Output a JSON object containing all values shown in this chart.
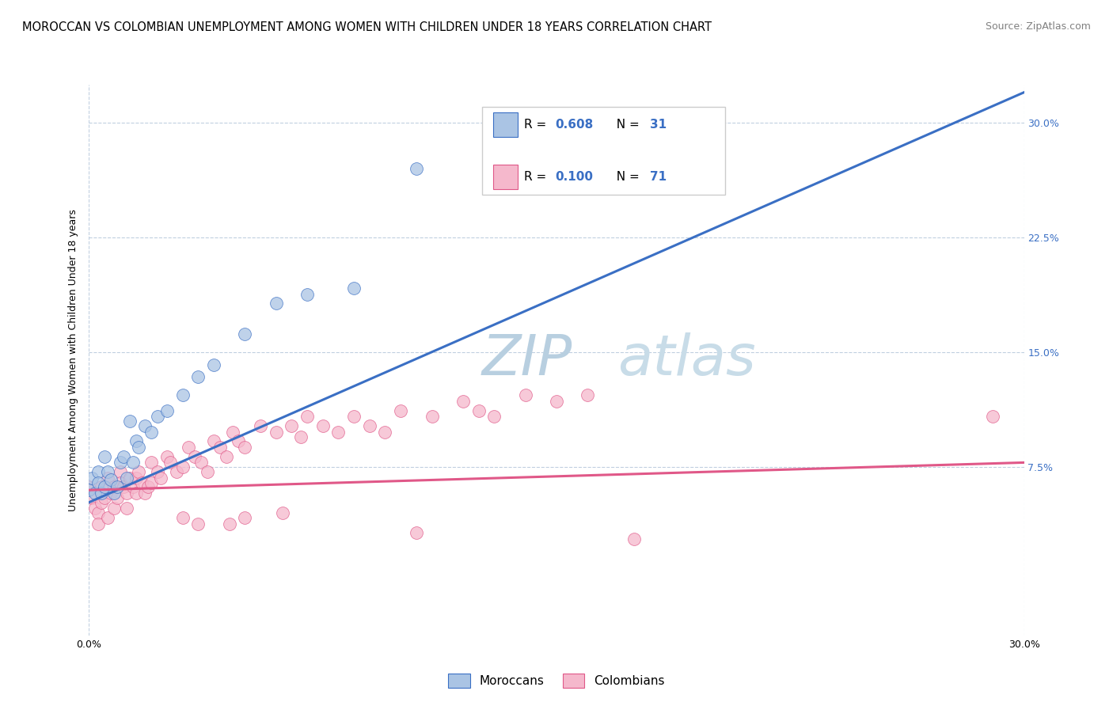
{
  "title": "MOROCCAN VS COLOMBIAN UNEMPLOYMENT AMONG WOMEN WITH CHILDREN UNDER 18 YEARS CORRELATION CHART",
  "source": "Source: ZipAtlas.com",
  "ylabel": "Unemployment Among Women with Children Under 18 years",
  "ytick_labels": [
    "7.5%",
    "15.0%",
    "22.5%",
    "30.0%"
  ],
  "ytick_values": [
    0.075,
    0.15,
    0.225,
    0.3
  ],
  "xlim": [
    0.0,
    0.3
  ],
  "ylim": [
    -0.035,
    0.325
  ],
  "moroccan_R": 0.608,
  "moroccan_N": 31,
  "colombian_R": 0.1,
  "colombian_N": 71,
  "moroccan_color": "#aac4e4",
  "colombian_color": "#f5b8cc",
  "moroccan_line_color": "#3a6fc4",
  "colombian_line_color": "#e05888",
  "background_color": "#ffffff",
  "grid_color": "#c0cfe0",
  "watermark_color": "#dae8f2",
  "legend_moroccan_label": "Moroccans",
  "legend_colombian_label": "Colombians",
  "title_fontsize": 10.5,
  "source_fontsize": 9,
  "axis_label_fontsize": 9,
  "tick_fontsize": 9,
  "legend_fontsize": 11,
  "watermark_fontsize": 52,
  "moroccan_scatter": [
    [
      0.0,
      0.06
    ],
    [
      0.001,
      0.068
    ],
    [
      0.002,
      0.058
    ],
    [
      0.003,
      0.072
    ],
    [
      0.003,
      0.065
    ],
    [
      0.004,
      0.058
    ],
    [
      0.005,
      0.082
    ],
    [
      0.005,
      0.062
    ],
    [
      0.006,
      0.072
    ],
    [
      0.007,
      0.067
    ],
    [
      0.008,
      0.058
    ],
    [
      0.009,
      0.062
    ],
    [
      0.01,
      0.078
    ],
    [
      0.011,
      0.082
    ],
    [
      0.012,
      0.068
    ],
    [
      0.013,
      0.105
    ],
    [
      0.014,
      0.078
    ],
    [
      0.015,
      0.092
    ],
    [
      0.016,
      0.088
    ],
    [
      0.018,
      0.102
    ],
    [
      0.02,
      0.098
    ],
    [
      0.022,
      0.108
    ],
    [
      0.025,
      0.112
    ],
    [
      0.03,
      0.122
    ],
    [
      0.035,
      0.134
    ],
    [
      0.04,
      0.142
    ],
    [
      0.05,
      0.162
    ],
    [
      0.06,
      0.182
    ],
    [
      0.07,
      0.188
    ],
    [
      0.085,
      0.192
    ],
    [
      0.105,
      0.27
    ]
  ],
  "colombian_scatter": [
    [
      0.0,
      0.062
    ],
    [
      0.001,
      0.055
    ],
    [
      0.002,
      0.048
    ],
    [
      0.003,
      0.045
    ],
    [
      0.003,
      0.038
    ],
    [
      0.004,
      0.062
    ],
    [
      0.004,
      0.052
    ],
    [
      0.005,
      0.055
    ],
    [
      0.006,
      0.068
    ],
    [
      0.006,
      0.042
    ],
    [
      0.007,
      0.058
    ],
    [
      0.008,
      0.062
    ],
    [
      0.008,
      0.048
    ],
    [
      0.009,
      0.055
    ],
    [
      0.01,
      0.072
    ],
    [
      0.01,
      0.065
    ],
    [
      0.011,
      0.062
    ],
    [
      0.012,
      0.058
    ],
    [
      0.012,
      0.048
    ],
    [
      0.013,
      0.068
    ],
    [
      0.014,
      0.062
    ],
    [
      0.015,
      0.068
    ],
    [
      0.015,
      0.058
    ],
    [
      0.016,
      0.072
    ],
    [
      0.017,
      0.065
    ],
    [
      0.018,
      0.058
    ],
    [
      0.019,
      0.062
    ],
    [
      0.02,
      0.078
    ],
    [
      0.02,
      0.065
    ],
    [
      0.022,
      0.072
    ],
    [
      0.023,
      0.068
    ],
    [
      0.025,
      0.082
    ],
    [
      0.026,
      0.078
    ],
    [
      0.028,
      0.072
    ],
    [
      0.03,
      0.042
    ],
    [
      0.03,
      0.075
    ],
    [
      0.032,
      0.088
    ],
    [
      0.034,
      0.082
    ],
    [
      0.035,
      0.038
    ],
    [
      0.036,
      0.078
    ],
    [
      0.038,
      0.072
    ],
    [
      0.04,
      0.092
    ],
    [
      0.042,
      0.088
    ],
    [
      0.044,
      0.082
    ],
    [
      0.045,
      0.038
    ],
    [
      0.046,
      0.098
    ],
    [
      0.048,
      0.092
    ],
    [
      0.05,
      0.088
    ],
    [
      0.05,
      0.042
    ],
    [
      0.055,
      0.102
    ],
    [
      0.06,
      0.098
    ],
    [
      0.062,
      0.045
    ],
    [
      0.065,
      0.102
    ],
    [
      0.068,
      0.095
    ],
    [
      0.07,
      0.108
    ],
    [
      0.075,
      0.102
    ],
    [
      0.08,
      0.098
    ],
    [
      0.085,
      0.108
    ],
    [
      0.09,
      0.102
    ],
    [
      0.095,
      0.098
    ],
    [
      0.1,
      0.112
    ],
    [
      0.105,
      0.032
    ],
    [
      0.11,
      0.108
    ],
    [
      0.12,
      0.118
    ],
    [
      0.125,
      0.112
    ],
    [
      0.13,
      0.108
    ],
    [
      0.14,
      0.122
    ],
    [
      0.15,
      0.118
    ],
    [
      0.16,
      0.122
    ],
    [
      0.175,
      0.028
    ],
    [
      0.29,
      0.108
    ]
  ],
  "mor_line": [
    0.0,
    0.3
  ],
  "mor_line_y": [
    0.052,
    0.32
  ],
  "col_line": [
    0.0,
    0.3
  ],
  "col_line_y": [
    0.06,
    0.078
  ]
}
